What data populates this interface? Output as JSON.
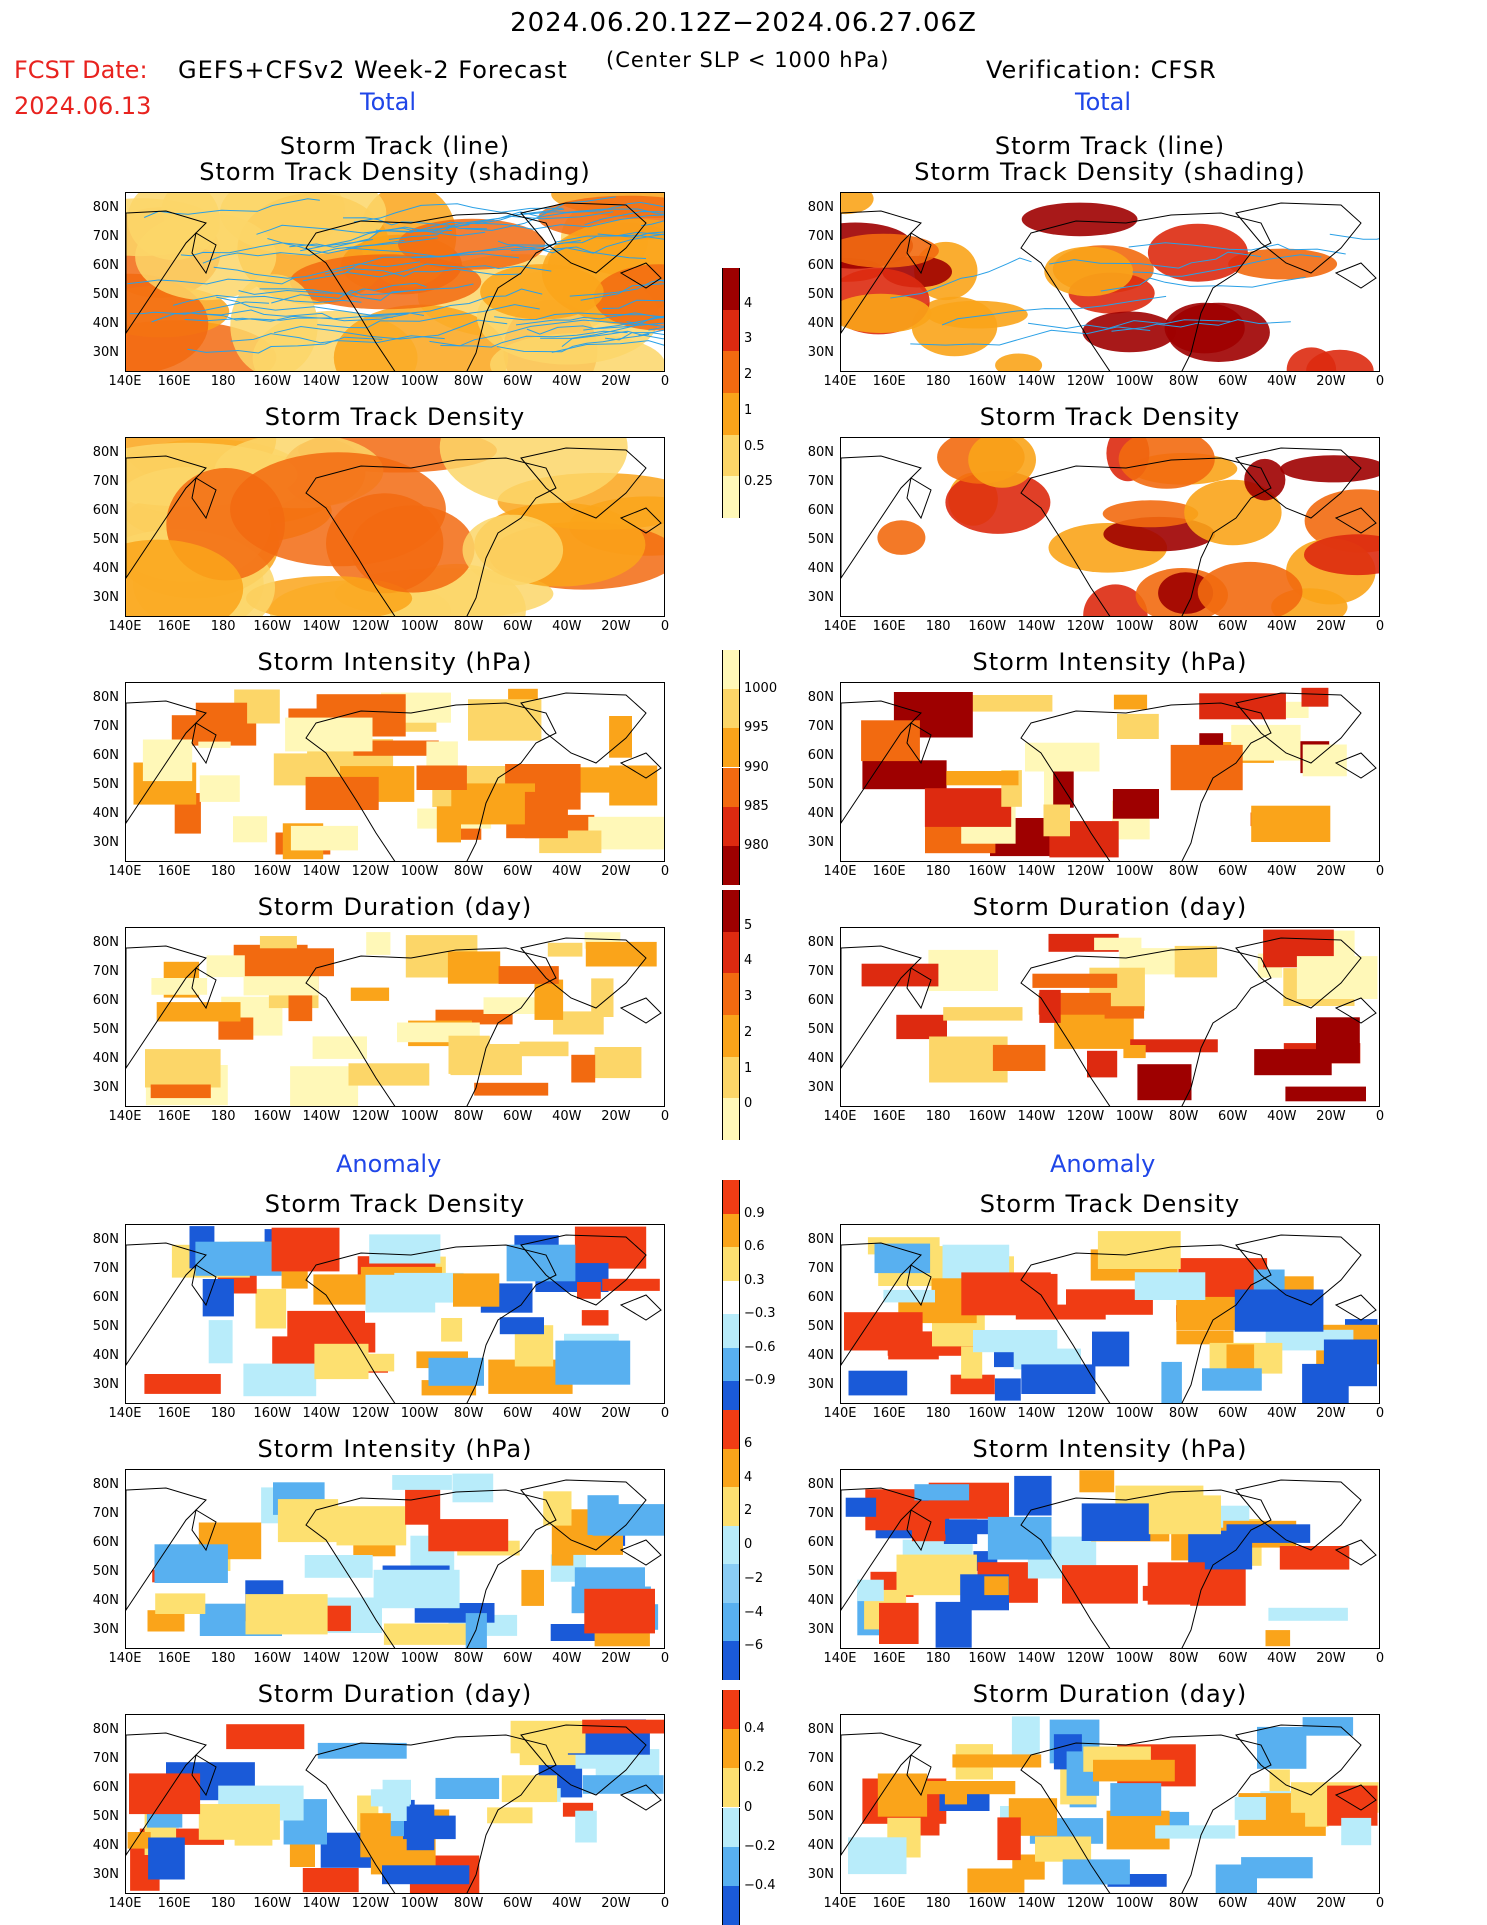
{
  "header": {
    "period": "2024.06.20.12Z−2024.06.27.06Z",
    "fcst_date_label": "FCST Date:",
    "fcst_date": "2024.06.13",
    "model": "GEFS+CFSv2 Week-2 Forecast",
    "criterion": "(Center SLP < 1000 hPa)",
    "verification": "Verification: CFSR",
    "total_label_left": "Total",
    "total_label_right": "Total",
    "anomaly_label_left": "Anomaly",
    "anomaly_label_right": "Anomaly"
  },
  "titles": {
    "track_line": "Storm Track (line)",
    "track_shading": "Storm Track Density (shading)",
    "density": "Storm Track Density",
    "intensity": "Storm Intensity (hPa)",
    "duration": "Storm Duration (day)"
  },
  "axes": {
    "lat_labels": [
      "80N",
      "70N",
      "60N",
      "50N",
      "40N",
      "30N"
    ],
    "lon_labels": [
      "140E",
      "160E",
      "180",
      "160W",
      "140W",
      "120W",
      "100W",
      "80W",
      "60W",
      "40W",
      "20W",
      "0"
    ]
  },
  "colorbars": {
    "density_total": {
      "labels": [
        "4",
        "3",
        "2",
        "1",
        "0.5",
        "0.25"
      ],
      "colors": [
        "#9e0000",
        "#dd2a10",
        "#f26a10",
        "#faa41a",
        "#fcd668",
        "#fff8b8"
      ]
    },
    "intensity_total": {
      "labels": [
        "1000",
        "995",
        "990",
        "985",
        "980"
      ],
      "colors": [
        "#fff8b8",
        "#fcd668",
        "#faa41a",
        "#f26a10",
        "#dd2a10",
        "#9e0000"
      ]
    },
    "duration_total": {
      "labels": [
        "5",
        "4",
        "3",
        "2",
        "1",
        "0"
      ],
      "colors": [
        "#9e0000",
        "#dd2a10",
        "#f26a10",
        "#faa41a",
        "#fcd668",
        "#fff8b8"
      ]
    },
    "density_anom": {
      "labels": [
        "0.9",
        "0.6",
        "0.3",
        "−0.3",
        "−0.6",
        "−0.9"
      ],
      "colors": [
        "#f03c14",
        "#faa41a",
        "#fde070",
        "#ffffff",
        "#b8ecfa",
        "#58b0f0",
        "#1a5ad8"
      ]
    },
    "intensity_anom": {
      "labels": [
        "6",
        "4",
        "2",
        "0",
        "−2",
        "−4",
        "−6"
      ],
      "colors": [
        "#f03c14",
        "#faa41a",
        "#fde070",
        "#b8ecfa",
        "#8acdf5",
        "#58b0f0",
        "#1a5ad8"
      ]
    },
    "duration_anom": {
      "labels": [
        "0.4",
        "0.2",
        "0",
        "−0.2",
        "−0.4"
      ],
      "colors": [
        "#f03c14",
        "#faa41a",
        "#fde070",
        "#b8ecfa",
        "#58b0f0",
        "#1a5ad8"
      ]
    }
  }
}
